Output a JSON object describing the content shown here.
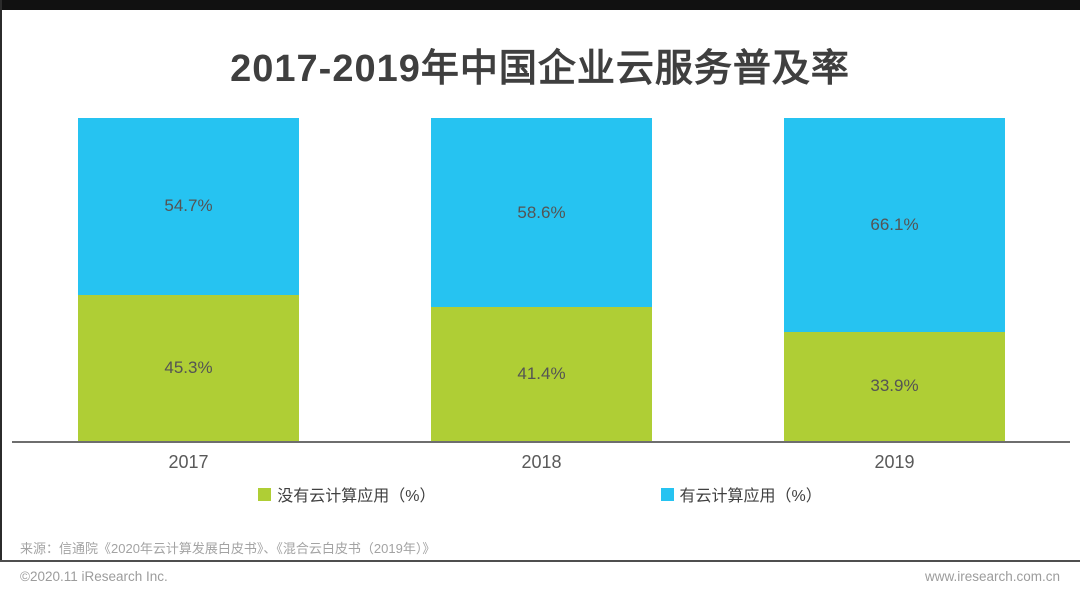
{
  "title": "2017-2019年中国企业云服务普及率",
  "chart_data": {
    "type": "bar",
    "stacked": true,
    "title": "2017-2019年中国企业云服务普及率",
    "categories": [
      "2017",
      "2018",
      "2019"
    ],
    "series": [
      {
        "name": "没有云计算应用（%）",
        "position": "bottom",
        "color": "#afce35",
        "values": [
          45.3,
          41.4,
          33.9
        ]
      },
      {
        "name": "有云计算应用（%）",
        "position": "top",
        "color": "#26c3f1",
        "values": [
          54.7,
          58.6,
          66.1
        ]
      }
    ],
    "value_labels": {
      "没有云计算应用（%）": [
        "45.3%",
        "41.4%",
        "33.9%"
      ],
      "有云计算应用（%）": [
        "54.7%",
        "58.6%",
        "66.1%"
      ]
    },
    "xlabel": "",
    "ylabel": "",
    "ylim": [
      0,
      100
    ],
    "grid": false,
    "legend_position": "bottom"
  },
  "legend": {
    "items": [
      {
        "label": "没有云计算应用（%）",
        "color": "#afce35"
      },
      {
        "label": "有云计算应用（%）",
        "color": "#26c3f1"
      }
    ]
  },
  "source_note": "来源：信通院《2020年云计算发展白皮书》、《混合云白皮书（2019年）》",
  "footer": {
    "copyright": "©2020.11 iResearch Inc.",
    "website": "www.iresearch.com.cn"
  },
  "colors": {
    "green": "#afce35",
    "blue": "#26c3f1",
    "title_text": "#3f3f3f",
    "value_label": "#545454",
    "axis_label": "#595959",
    "axis_line": "#6e6e6e",
    "muted_text": "#a3a3a3",
    "footer_rule": "#4f4f4f",
    "top_bar": "#111111",
    "left_line": "#2b2b2b"
  }
}
